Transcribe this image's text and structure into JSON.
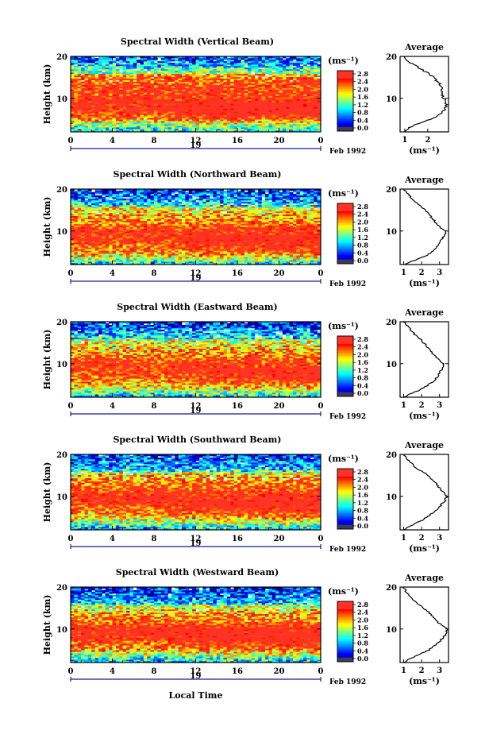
{
  "figure": {
    "date_label": "Feb 1992",
    "day_label": "19",
    "xaxis_label": "Local Time",
    "colorbar_unit": "(ms⁻¹)",
    "avg_title": "Average",
    "avg_unit": "(ms⁻¹)"
  },
  "chart_data": [
    {
      "type": "heatmap",
      "title": "Spectral Width (Vertical Beam)",
      "ylabel": "Height (km)",
      "xlabel": "",
      "x_ticks": [
        "0",
        "4",
        "8",
        "12",
        "16",
        "20",
        "0"
      ],
      "y_ticks": [
        "20",
        "10"
      ],
      "xlim": [
        0,
        24
      ],
      "ylim": [
        2,
        20
      ],
      "colorbar": {
        "min": 0.0,
        "max": 2.8,
        "ticks": [
          "2.8",
          "2.4",
          "2.0",
          "1.6",
          "1.2",
          "0.8",
          "0.4",
          "0.0"
        ]
      },
      "average_profile": {
        "x_ticks": [
          "1",
          "2"
        ],
        "y_ticks": [
          "20",
          "10"
        ],
        "xlim": [
          0.8,
          2.9
        ],
        "points": [
          [
            1.0,
            2
          ],
          [
            1.2,
            3
          ],
          [
            1.6,
            4
          ],
          [
            2.1,
            5
          ],
          [
            2.5,
            6
          ],
          [
            2.7,
            7
          ],
          [
            2.8,
            8
          ],
          [
            2.8,
            9
          ],
          [
            2.7,
            10
          ],
          [
            2.6,
            11
          ],
          [
            2.6,
            12
          ],
          [
            2.6,
            13
          ],
          [
            2.4,
            14
          ],
          [
            2.3,
            15
          ],
          [
            2.0,
            16
          ],
          [
            1.7,
            17
          ],
          [
            1.4,
            18
          ],
          [
            1.1,
            19
          ],
          [
            1.0,
            20
          ]
        ]
      }
    },
    {
      "type": "heatmap",
      "title": "Spectral Width (Northward Beam)",
      "ylabel": "Height (km)",
      "xlabel": "",
      "x_ticks": [
        "0",
        "4",
        "8",
        "12",
        "16",
        "20",
        "0"
      ],
      "y_ticks": [
        "20",
        "10"
      ],
      "xlim": [
        0,
        24
      ],
      "ylim": [
        2,
        20
      ],
      "colorbar": {
        "min": 0.0,
        "max": 2.8,
        "ticks": [
          "2.8",
          "2.4",
          "2.0",
          "1.6",
          "1.2",
          "0.8",
          "0.4",
          "0.0"
        ]
      },
      "average_profile": {
        "x_ticks": [
          "1",
          "2",
          "3"
        ],
        "y_ticks": [
          "20",
          "10"
        ],
        "xlim": [
          0.8,
          3.5
        ],
        "points": [
          [
            1.0,
            2
          ],
          [
            1.6,
            3
          ],
          [
            2.2,
            4
          ],
          [
            2.6,
            5
          ],
          [
            2.8,
            6
          ],
          [
            3.0,
            7
          ],
          [
            3.1,
            8
          ],
          [
            3.3,
            9
          ],
          [
            3.3,
            10
          ],
          [
            3.0,
            11
          ],
          [
            2.8,
            12
          ],
          [
            2.6,
            13
          ],
          [
            2.4,
            14
          ],
          [
            2.2,
            15
          ],
          [
            1.9,
            16
          ],
          [
            1.6,
            17
          ],
          [
            1.4,
            18
          ],
          [
            1.2,
            19
          ],
          [
            1.0,
            20
          ]
        ]
      }
    },
    {
      "type": "heatmap",
      "title": "Spectral Width (Eastward Beam)",
      "ylabel": "Height (km)",
      "xlabel": "",
      "x_ticks": [
        "0",
        "4",
        "8",
        "12",
        "16",
        "20",
        "0"
      ],
      "y_ticks": [
        "20",
        "10"
      ],
      "xlim": [
        0,
        24
      ],
      "ylim": [
        2,
        20
      ],
      "colorbar": {
        "min": 0.0,
        "max": 2.8,
        "ticks": [
          "2.8",
          "2.4",
          "2.0",
          "1.6",
          "1.2",
          "0.8",
          "0.4",
          "0.0"
        ]
      },
      "average_profile": {
        "x_ticks": [
          "1",
          "2",
          "3"
        ],
        "y_ticks": [
          "20",
          "10"
        ],
        "xlim": [
          0.8,
          3.5
        ],
        "points": [
          [
            1.0,
            2
          ],
          [
            1.5,
            3
          ],
          [
            2.0,
            4
          ],
          [
            2.4,
            5
          ],
          [
            2.7,
            6
          ],
          [
            2.9,
            7
          ],
          [
            3.0,
            8
          ],
          [
            3.2,
            9
          ],
          [
            3.2,
            10
          ],
          [
            3.0,
            11
          ],
          [
            2.7,
            12
          ],
          [
            2.5,
            13
          ],
          [
            2.3,
            14
          ],
          [
            2.1,
            15
          ],
          [
            1.9,
            16
          ],
          [
            1.6,
            17
          ],
          [
            1.4,
            18
          ],
          [
            1.2,
            19
          ],
          [
            1.0,
            20
          ]
        ]
      }
    },
    {
      "type": "heatmap",
      "title": "Spectral Width (Southward Beam)",
      "ylabel": "Height (km)",
      "xlabel": "",
      "x_ticks": [
        "0",
        "4",
        "8",
        "12",
        "16",
        "20",
        "0"
      ],
      "y_ticks": [
        "20",
        "10"
      ],
      "xlim": [
        0,
        24
      ],
      "ylim": [
        2,
        20
      ],
      "colorbar": {
        "min": 0.0,
        "max": 2.8,
        "ticks": [
          "2.8",
          "2.4",
          "2.0",
          "1.6",
          "1.2",
          "0.8",
          "0.4",
          "0.0"
        ]
      },
      "average_profile": {
        "x_ticks": [
          "1",
          "2",
          "3"
        ],
        "y_ticks": [
          "20",
          "10"
        ],
        "xlim": [
          0.8,
          3.5
        ],
        "points": [
          [
            1.0,
            2
          ],
          [
            1.4,
            3
          ],
          [
            1.9,
            4
          ],
          [
            2.3,
            5
          ],
          [
            2.6,
            6
          ],
          [
            2.9,
            7
          ],
          [
            3.1,
            8
          ],
          [
            3.3,
            9
          ],
          [
            3.4,
            10
          ],
          [
            3.2,
            11
          ],
          [
            3.0,
            12
          ],
          [
            2.8,
            13
          ],
          [
            2.6,
            14
          ],
          [
            2.3,
            15
          ],
          [
            2.0,
            16
          ],
          [
            1.6,
            17
          ],
          [
            1.4,
            18
          ],
          [
            1.2,
            19
          ],
          [
            1.0,
            20
          ]
        ]
      }
    },
    {
      "type": "heatmap",
      "title": "Spectral Width (Westward Beam)",
      "ylabel": "Height (km)",
      "xlabel": "Local Time",
      "x_ticks": [
        "0",
        "4",
        "8",
        "12",
        "16",
        "20",
        "0"
      ],
      "y_ticks": [
        "20",
        "10"
      ],
      "xlim": [
        0,
        24
      ],
      "ylim": [
        2,
        20
      ],
      "colorbar": {
        "min": 0.0,
        "max": 2.8,
        "ticks": [
          "2.8",
          "2.4",
          "2.0",
          "1.6",
          "1.2",
          "0.8",
          "0.4",
          "0.0"
        ]
      },
      "average_profile": {
        "x_ticks": [
          "1",
          "2",
          "3"
        ],
        "y_ticks": [
          "20",
          "10"
        ],
        "xlim": [
          0.8,
          3.5
        ],
        "points": [
          [
            1.0,
            2
          ],
          [
            1.4,
            3
          ],
          [
            1.9,
            4
          ],
          [
            2.4,
            5
          ],
          [
            2.7,
            6
          ],
          [
            3.0,
            7
          ],
          [
            3.2,
            8
          ],
          [
            3.4,
            9
          ],
          [
            3.4,
            10
          ],
          [
            3.1,
            11
          ],
          [
            2.8,
            12
          ],
          [
            2.6,
            13
          ],
          [
            2.4,
            14
          ],
          [
            2.1,
            15
          ],
          [
            1.8,
            16
          ],
          [
            1.5,
            17
          ],
          [
            1.3,
            18
          ],
          [
            1.1,
            19
          ],
          [
            1.0,
            20
          ]
        ]
      }
    }
  ]
}
